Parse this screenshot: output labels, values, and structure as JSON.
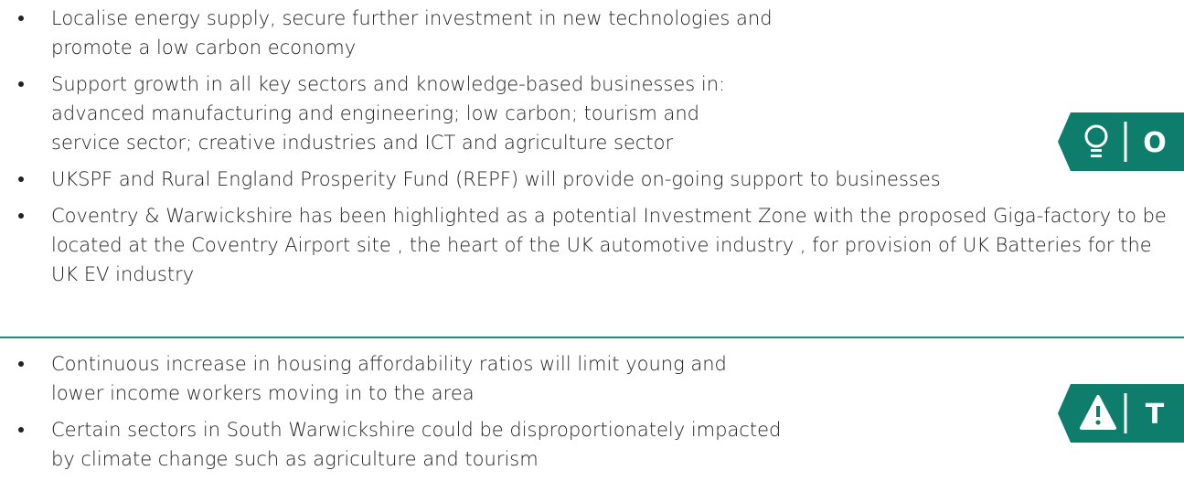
{
  "opportunities": {
    "letter": "O",
    "items": [
      "Localise energy supply, secure further investment in new technologies and promote a low carbon economy",
      "Support growth in all key sectors and knowledge-based businesses in: advanced manufacturing and engineering; low carbon; tourism and service sector; creative industries and ICT and agriculture sector",
      "UKSPF and Rural England Prosperity Fund (REPF) will provide on-going support to businesses",
      "Coventry & Warwickshire has been highlighted as a potential Investment Zone with the proposed Giga-factory to be located at the Coventry Airport site , the heart of the UK automotive industry , for provision of UK Batteries for the UK EV industry"
    ]
  },
  "threats": {
    "letter": "T",
    "items": [
      "Continuous increase in housing affordability ratios will limit young and lower income workers moving in to the area",
      "Certain sectors in South Warwickshire could be disproportionately impacted by climate change such as agriculture and tourism"
    ]
  }
}
